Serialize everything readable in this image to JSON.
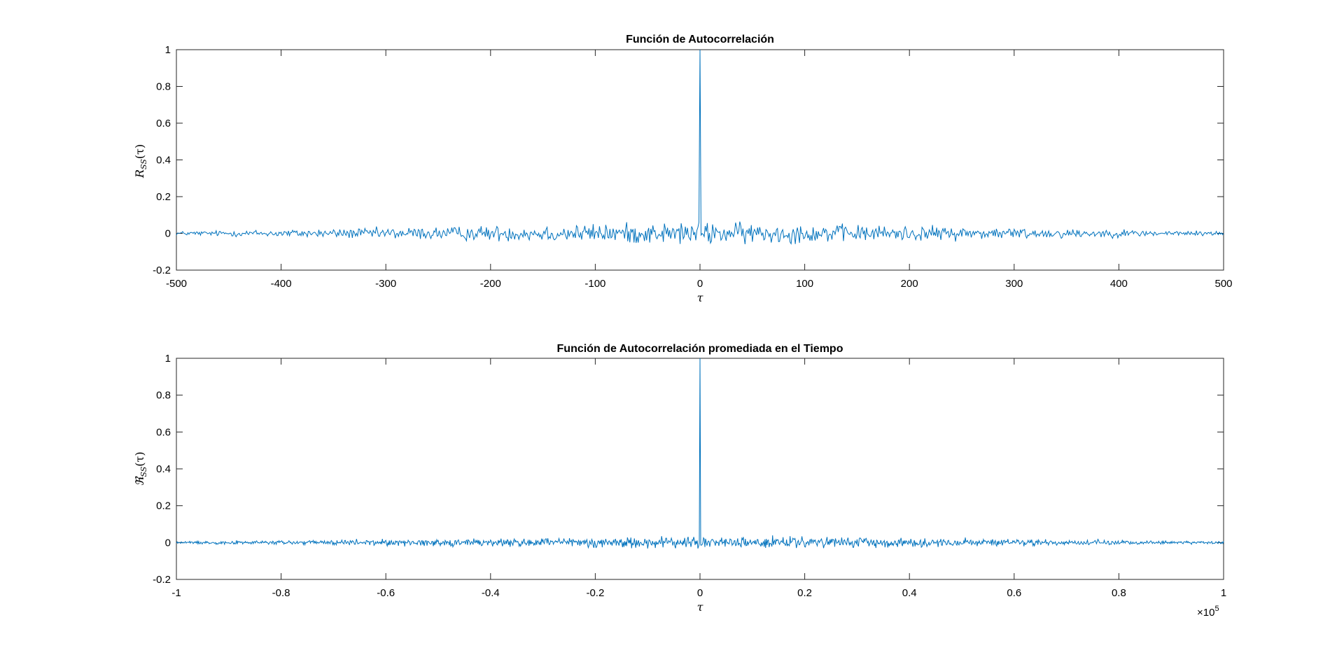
{
  "figure": {
    "background": "#ffffff",
    "line_color": "#0072BD"
  },
  "chart_data": [
    {
      "type": "line",
      "title": "Función de Autocorrelación",
      "xlabel": "τ",
      "ylabel": "R_SS(τ)",
      "ylabel_main": "R",
      "ylabel_sub": "SS",
      "ylabel_arg": "(τ)",
      "xlim": [
        -500,
        500
      ],
      "ylim": [
        -0.2,
        1
      ],
      "xticks": [
        -500,
        -400,
        -300,
        -200,
        -100,
        0,
        100,
        200,
        300,
        400,
        500
      ],
      "xtick_labels": [
        "-500",
        "-400",
        "-300",
        "-200",
        "-100",
        "0",
        "100",
        "200",
        "300",
        "400",
        "500"
      ],
      "yticks": [
        -0.2,
        0,
        0.2,
        0.4,
        0.6,
        0.8,
        1
      ],
      "ytick_labels": [
        "-0.2",
        "0",
        "0.2",
        "0.4",
        "0.6",
        "0.8",
        "1"
      ],
      "grid": false,
      "exponent_label": "",
      "series": [
        {
          "description": "noise-like sample autocorrelation, peak 1 at τ = 0",
          "peak": {
            "x": 0,
            "y": 1
          },
          "noise_amplitude_edge": 0.01,
          "noise_amplitude_center": 0.055,
          "range_min": -0.09,
          "range_max": 0.1,
          "num_points": 1001
        }
      ]
    },
    {
      "type": "line",
      "title": "Función de Autocorrelación promediada en el Tiempo",
      "xlabel": "τ",
      "ylabel": "ℜ_SS(τ)",
      "ylabel_main": "ℜ",
      "ylabel_sub": "SS",
      "ylabel_arg": "(τ)",
      "xlim": [
        -100000,
        100000
      ],
      "ylim": [
        -0.2,
        1
      ],
      "xticks": [
        -100000,
        -80000,
        -60000,
        -40000,
        -20000,
        0,
        20000,
        40000,
        60000,
        80000,
        100000
      ],
      "xtick_labels": [
        "-1",
        "-0.8",
        "-0.6",
        "-0.4",
        "-0.2",
        "0",
        "0.2",
        "0.4",
        "0.6",
        "0.8",
        "1"
      ],
      "yticks": [
        -0.2,
        0,
        0.2,
        0.4,
        0.6,
        0.8,
        1
      ],
      "ytick_labels": [
        "-0.2",
        "0",
        "0.2",
        "0.4",
        "0.6",
        "0.8",
        "1"
      ],
      "grid": false,
      "exponent_label": "×10",
      "exponent_power": "5",
      "series": [
        {
          "description": "noise-like time-averaged autocorrelation, peak 1 at τ = 0",
          "peak": {
            "x": 0,
            "y": 1
          },
          "noise_amplitude_edge": 0.006,
          "noise_amplitude_center": 0.03,
          "range_min": -0.08,
          "range_max": 0.07,
          "num_points": 1501
        }
      ]
    }
  ]
}
